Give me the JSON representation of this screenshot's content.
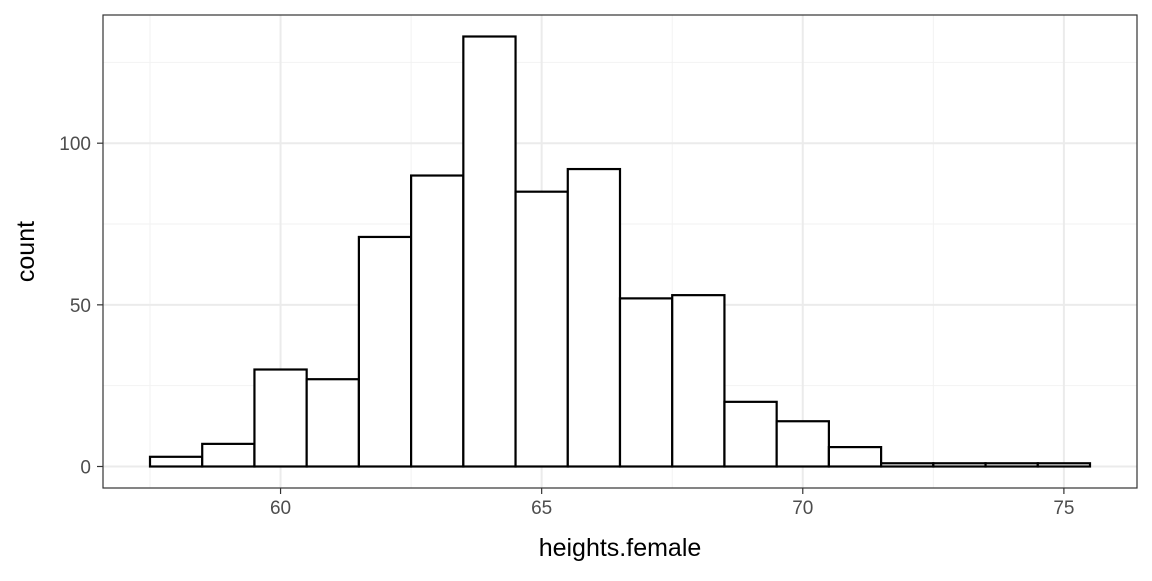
{
  "chart_data": {
    "type": "bar",
    "subtype": "histogram",
    "title": "",
    "xlabel": "heights.female",
    "ylabel": "count",
    "bin_width": 1,
    "bins": [
      {
        "x0": 57.5,
        "x1": 58.5,
        "count": 3
      },
      {
        "x0": 58.5,
        "x1": 59.5,
        "count": 7
      },
      {
        "x0": 59.5,
        "x1": 60.5,
        "count": 30
      },
      {
        "x0": 60.5,
        "x1": 61.5,
        "count": 27
      },
      {
        "x0": 61.5,
        "x1": 62.5,
        "count": 71
      },
      {
        "x0": 62.5,
        "x1": 63.5,
        "count": 90
      },
      {
        "x0": 63.5,
        "x1": 64.5,
        "count": 133
      },
      {
        "x0": 64.5,
        "x1": 65.5,
        "count": 85
      },
      {
        "x0": 65.5,
        "x1": 66.5,
        "count": 92
      },
      {
        "x0": 66.5,
        "x1": 67.5,
        "count": 52
      },
      {
        "x0": 67.5,
        "x1": 68.5,
        "count": 53
      },
      {
        "x0": 68.5,
        "x1": 69.5,
        "count": 20
      },
      {
        "x0": 69.5,
        "x1": 70.5,
        "count": 14
      },
      {
        "x0": 70.5,
        "x1": 71.5,
        "count": 6
      },
      {
        "x0": 71.5,
        "x1": 72.5,
        "count": 1
      },
      {
        "x0": 72.5,
        "x1": 73.5,
        "count": 1
      },
      {
        "x0": 73.5,
        "x1": 74.5,
        "count": 1
      },
      {
        "x0": 74.5,
        "x1": 75.5,
        "count": 1
      }
    ],
    "xlim": [
      56.6,
      76.4
    ],
    "ylim": [
      -6.65,
      139.65
    ],
    "x_ticks": [
      60,
      65,
      70,
      75
    ],
    "x_tick_labels": [
      "60",
      "65",
      "70",
      "75"
    ],
    "y_ticks": [
      0,
      50,
      100
    ],
    "y_tick_labels": [
      "0",
      "50",
      "100"
    ],
    "grid": true,
    "legend": "none",
    "theme": "bw",
    "colors": {
      "bar_fill": "#ffffff",
      "bar_outline": "#000000",
      "grid_major": "#ebebeb",
      "grid_minor": "#f2f2f2",
      "panel_border": "#333333",
      "tick_text": "#4d4d4d"
    }
  }
}
